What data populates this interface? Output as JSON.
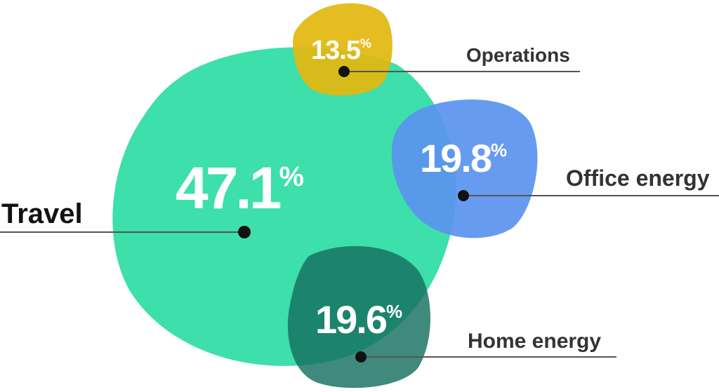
{
  "chart_data": {
    "type": "bubble",
    "unit": "%",
    "slices": [
      {
        "label": "Travel",
        "value": 47.1,
        "display": "47.1",
        "color": "#3ddfaa"
      },
      {
        "label": "Operations",
        "value": 13.5,
        "display": "13.5",
        "color": "#e2b810"
      },
      {
        "label": "Office energy",
        "value": 19.8,
        "display": "19.8",
        "color": "#5b93ee"
      },
      {
        "label": "Home energy",
        "value": 19.6,
        "display": "19.6",
        "color": "#15705f"
      }
    ]
  }
}
